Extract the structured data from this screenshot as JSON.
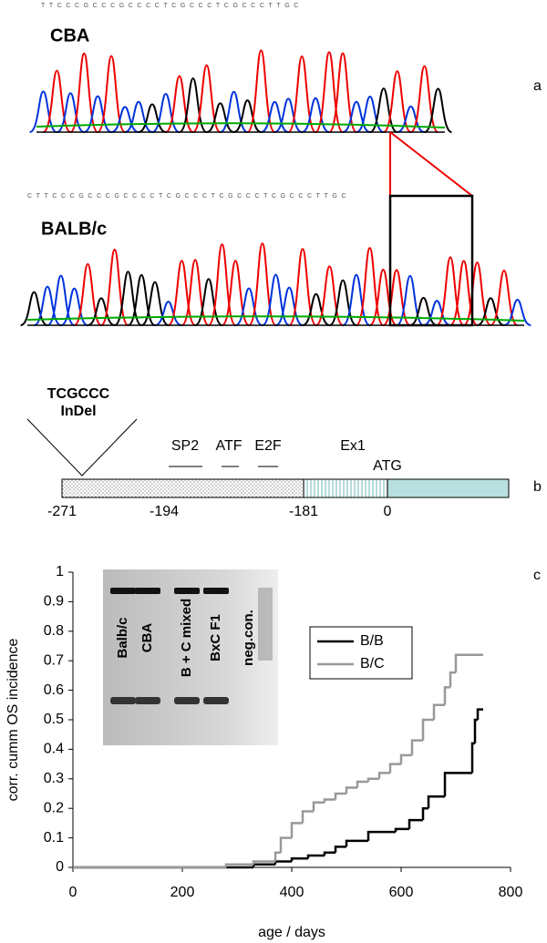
{
  "panel_labels": [
    "a",
    "b",
    "c"
  ],
  "chromatograms": [
    {
      "label": "CBA",
      "sequence": "TTCCCGCCCGCCCCTCGCCCTCGCCCTTGC"
    },
    {
      "label": "BALB/c",
      "sequence": "CTTCCCGCCCGCCCCTCGCCCTCGCCCTCGCCCTTGC"
    }
  ],
  "promoter": {
    "indel": [
      "TCGCCC",
      "InDel"
    ],
    "elements": [
      "SP2",
      "ATF",
      "E2F",
      "Ex1",
      "ATG"
    ],
    "positions": [
      "-271",
      "-194",
      "-181",
      "0"
    ]
  },
  "gel": {
    "lanes": [
      "Balb/c",
      "CBA",
      "B + C mixed",
      "BxC F1",
      "neg.con."
    ]
  },
  "chart_data": {
    "type": "step",
    "xlabel": "age / days",
    "ylabel": "corr. cumm OS incidence",
    "xlim": [
      0,
      800
    ],
    "ylim": [
      0,
      1
    ],
    "xticks": [
      0,
      200,
      400,
      600,
      800
    ],
    "yticks": [
      0,
      0.1,
      0.2,
      0.3,
      0.4,
      0.5,
      0.6,
      0.7,
      0.8,
      0.9,
      1
    ],
    "legend": "right",
    "series": [
      {
        "name": "B/B",
        "color": "#000000",
        "x": [
          0,
          330,
          370,
          400,
          430,
          460,
          480,
          500,
          540,
          590,
          615,
          640,
          650,
          680,
          730,
          735,
          740,
          750
        ],
        "values": [
          0,
          0.01,
          0.02,
          0.03,
          0.04,
          0.05,
          0.07,
          0.09,
          0.12,
          0.13,
          0.16,
          0.2,
          0.24,
          0.32,
          0.42,
          0.5,
          0.535,
          0.535
        ]
      },
      {
        "name": "B/C",
        "color": "#999999",
        "x": [
          0,
          280,
          330,
          370,
          380,
          400,
          420,
          440,
          460,
          480,
          500,
          520,
          540,
          560,
          580,
          600,
          620,
          640,
          660,
          680,
          690,
          700,
          750
        ],
        "values": [
          0,
          0.01,
          0.02,
          0.05,
          0.1,
          0.15,
          0.19,
          0.22,
          0.23,
          0.25,
          0.27,
          0.29,
          0.3,
          0.32,
          0.35,
          0.38,
          0.43,
          0.5,
          0.55,
          0.61,
          0.66,
          0.72,
          0.72
        ]
      }
    ]
  }
}
